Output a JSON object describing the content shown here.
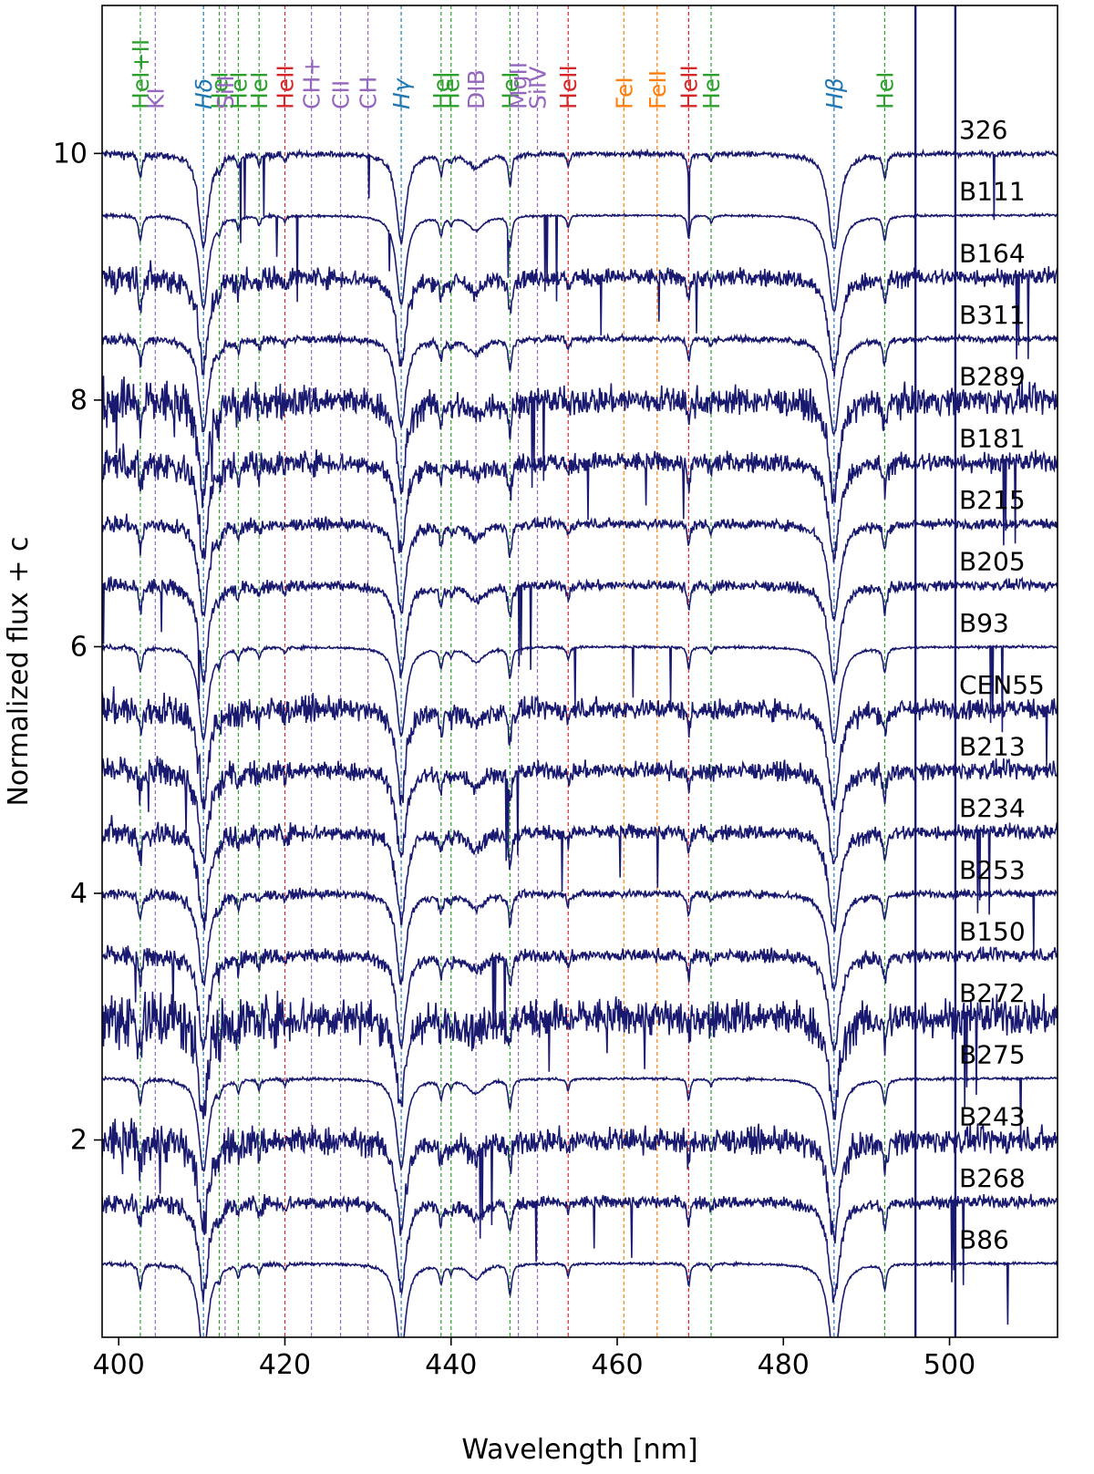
{
  "chart_data": {
    "type": "line",
    "title": "",
    "xlabel": "Wavelength [nm]",
    "ylabel": "Normalized flux + c",
    "xlim": [
      398,
      513
    ],
    "ylim": [
      0.4,
      11.2
    ],
    "xticks": [
      400,
      420,
      440,
      460,
      480,
      500
    ],
    "yticks": [
      2,
      4,
      6,
      8,
      10
    ],
    "grid": false,
    "series_color": "#191970",
    "series": [
      {
        "name": "326",
        "offset": 10.0,
        "noise": 0.02
      },
      {
        "name": "B111",
        "offset": 9.5,
        "noise": 0.008
      },
      {
        "name": "B164",
        "offset": 9.0,
        "noise": 0.07
      },
      {
        "name": "B311",
        "offset": 8.5,
        "noise": 0.025
      },
      {
        "name": "B289",
        "offset": 8.0,
        "noise": 0.11
      },
      {
        "name": "B181",
        "offset": 7.5,
        "noise": 0.08
      },
      {
        "name": "B215",
        "offset": 7.0,
        "noise": 0.04
      },
      {
        "name": "B205",
        "offset": 6.5,
        "noise": 0.04
      },
      {
        "name": "B93",
        "offset": 6.0,
        "noise": 0.01
      },
      {
        "name": "CEN55",
        "offset": 5.5,
        "noise": 0.08
      },
      {
        "name": "B213",
        "offset": 5.0,
        "noise": 0.07
      },
      {
        "name": "B234",
        "offset": 4.5,
        "noise": 0.06
      },
      {
        "name": "B253",
        "offset": 4.0,
        "noise": 0.03
      },
      {
        "name": "B150",
        "offset": 3.5,
        "noise": 0.05
      },
      {
        "name": "B272",
        "offset": 3.0,
        "noise": 0.15
      },
      {
        "name": "B275",
        "offset": 2.5,
        "noise": 0.01
      },
      {
        "name": "B243",
        "offset": 2.0,
        "noise": 0.1
      },
      {
        "name": "B268",
        "offset": 1.5,
        "noise": 0.05
      },
      {
        "name": "B86",
        "offset": 1.0,
        "noise": 0.01
      }
    ],
    "annotations": [
      {
        "label": "HeI+II",
        "wavelength": 402.6,
        "color": "#2ca02c"
      },
      {
        "label": "KI",
        "wavelength": 404.4,
        "color": "#9467bd"
      },
      {
        "label": "Hδ",
        "wavelength": 410.2,
        "color": "#1f77b4"
      },
      {
        "label": "HeI",
        "wavelength": 412.1,
        "color": "#2ca02c"
      },
      {
        "label": "SiII",
        "wavelength": 412.8,
        "color": "#9467bd"
      },
      {
        "label": "HeI",
        "wavelength": 414.4,
        "color": "#2ca02c"
      },
      {
        "label": "HeI",
        "wavelength": 416.9,
        "color": "#2ca02c"
      },
      {
        "label": "HeII",
        "wavelength": 420.0,
        "color": "#d62728"
      },
      {
        "label": "CH+",
        "wavelength": 423.2,
        "color": "#9467bd"
      },
      {
        "label": "CII",
        "wavelength": 426.7,
        "color": "#9467bd"
      },
      {
        "label": "CH",
        "wavelength": 430.0,
        "color": "#9467bd"
      },
      {
        "label": "Hγ",
        "wavelength": 434.0,
        "color": "#1f77b4"
      },
      {
        "label": "HeI",
        "wavelength": 438.8,
        "color": "#2ca02c"
      },
      {
        "label": "HeI",
        "wavelength": 440.0,
        "color": "#2ca02c"
      },
      {
        "label": "DIB",
        "wavelength": 443.0,
        "color": "#9467bd"
      },
      {
        "label": "HeI",
        "wavelength": 447.1,
        "color": "#2ca02c"
      },
      {
        "label": "MgII",
        "wavelength": 448.1,
        "color": "#9467bd"
      },
      {
        "label": "SiIV",
        "wavelength": 450.4,
        "color": "#9467bd"
      },
      {
        "label": "HeII",
        "wavelength": 454.1,
        "color": "#d62728"
      },
      {
        "label": "FeI",
        "wavelength": 460.8,
        "color": "#ff7f0e"
      },
      {
        "label": "FeII",
        "wavelength": 464.8,
        "color": "#ff7f0e"
      },
      {
        "label": "HeII",
        "wavelength": 468.6,
        "color": "#d62728"
      },
      {
        "label": "HeI",
        "wavelength": 471.3,
        "color": "#2ca02c"
      },
      {
        "label": "Hβ",
        "wavelength": 486.1,
        "color": "#1f77b4"
      },
      {
        "label": "HeI",
        "wavelength": 492.2,
        "color": "#2ca02c"
      }
    ],
    "absorption_lines": [
      {
        "center": 410.2,
        "depth": 0.75,
        "width": 0.7
      },
      {
        "center": 434.0,
        "depth": 0.72,
        "width": 0.7
      },
      {
        "center": 486.1,
        "depth": 0.78,
        "width": 0.8
      },
      {
        "center": 402.6,
        "depth": 0.2,
        "width": 0.25
      },
      {
        "center": 412.1,
        "depth": 0.08,
        "width": 0.2
      },
      {
        "center": 414.4,
        "depth": 0.1,
        "width": 0.2
      },
      {
        "center": 416.9,
        "depth": 0.08,
        "width": 0.2
      },
      {
        "center": 420.0,
        "depth": 0.05,
        "width": 0.2
      },
      {
        "center": 438.8,
        "depth": 0.15,
        "width": 0.25
      },
      {
        "center": 440.0,
        "depth": 0.06,
        "width": 0.2
      },
      {
        "center": 443.0,
        "depth": 0.12,
        "width": 1.1
      },
      {
        "center": 447.1,
        "depth": 0.25,
        "width": 0.25
      },
      {
        "center": 454.1,
        "depth": 0.1,
        "width": 0.2
      },
      {
        "center": 468.6,
        "depth": 0.18,
        "width": 0.2
      },
      {
        "center": 471.3,
        "depth": 0.06,
        "width": 0.2
      },
      {
        "center": 492.2,
        "depth": 0.2,
        "width": 0.25
      }
    ],
    "vertical_rules": [
      495.9,
      500.7
    ]
  }
}
